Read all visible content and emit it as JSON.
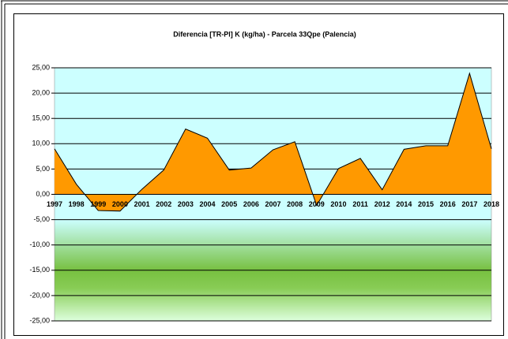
{
  "chart_data": {
    "type": "area",
    "title": "Diferencia [TR-Pl] K (kg/ha) - Parcela 33Qpe (Palencia)",
    "categories": [
      "1997",
      "1998",
      "1999",
      "2000",
      "2001",
      "2002",
      "2003",
      "2004",
      "2005",
      "2006",
      "2007",
      "2008",
      "2009",
      "2010",
      "2011",
      "2012",
      "2014",
      "2015",
      "2016",
      "2017",
      "2018"
    ],
    "series": [
      {
        "color": "#ff9900",
        "values": [
          9.0,
          2.0,
          -3.2,
          -3.3,
          1.0,
          4.8,
          12.9,
          11.1,
          4.8,
          5.2,
          8.8,
          10.4,
          -2.2,
          5.1,
          7.1,
          0.9,
          8.9,
          9.6,
          9.6,
          23.9,
          9.0
        ]
      }
    ],
    "ylim": [
      -25,
      25
    ],
    "yticks": [
      {
        "value": -25,
        "label": "-25,00"
      },
      {
        "value": -20,
        "label": "-20,00"
      },
      {
        "value": -15,
        "label": "-15,00"
      },
      {
        "value": -10,
        "label": "-10,00"
      },
      {
        "value": -5,
        "label": "-5,00"
      },
      {
        "value": 0,
        "label": "0,00"
      },
      {
        "value": 5,
        "label": "5,00"
      },
      {
        "value": 10,
        "label": "10,00"
      },
      {
        "value": 15,
        "label": "15,00"
      },
      {
        "value": 20,
        "label": "20,00"
      },
      {
        "value": 25,
        "label": "25,00"
      }
    ],
    "grid": true
  }
}
